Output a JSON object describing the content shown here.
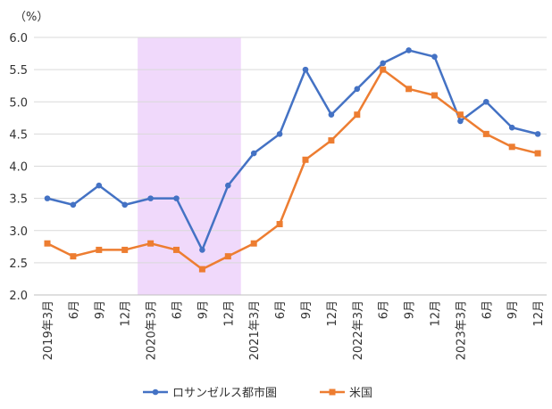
{
  "chart_data": {
    "type": "line",
    "unit_label": "（%）",
    "categories": [
      "2019年3月",
      "6月",
      "9月",
      "12月",
      "2020年3月",
      "6月",
      "9月",
      "12月",
      "2021年3月",
      "6月",
      "9月",
      "12月",
      "2022年3月",
      "6月",
      "9月",
      "12月",
      "2023年3月",
      "6月",
      "9月",
      "12月"
    ],
    "series": [
      {
        "name": "ロサンゼルス都市圏",
        "color": "#4472C4",
        "marker": "circle",
        "values": [
          3.5,
          3.4,
          3.7,
          3.4,
          3.5,
          3.5,
          2.7,
          3.7,
          4.2,
          4.5,
          5.5,
          4.8,
          5.2,
          5.6,
          5.8,
          5.7,
          4.7,
          5.0,
          4.6,
          4.5
        ]
      },
      {
        "name": "米国",
        "color": "#ED7D31",
        "marker": "square",
        "values": [
          2.8,
          2.6,
          2.7,
          2.7,
          2.8,
          2.7,
          2.4,
          2.6,
          2.8,
          3.1,
          4.1,
          4.4,
          4.8,
          5.5,
          5.2,
          5.1,
          4.8,
          4.5,
          4.3,
          4.2
        ]
      }
    ],
    "y_ticks": [
      "6.0",
      "5.5",
      "5.0",
      "4.5",
      "4.0",
      "3.5",
      "3.0",
      "2.5",
      "2.0"
    ],
    "ylim": [
      2.0,
      6.0
    ],
    "shaded_period": {
      "from_index": 4,
      "to_index": 7,
      "color": "#F0D9FB"
    },
    "grid": true,
    "legend_position": "bottom"
  }
}
